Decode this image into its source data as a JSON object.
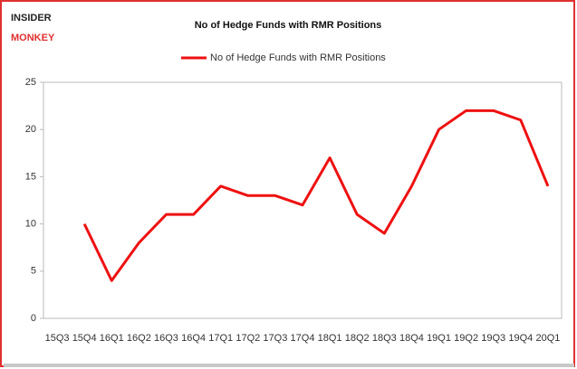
{
  "logo": {
    "line1": "INSIDER",
    "line2": "MONKEY"
  },
  "chart_data": {
    "type": "line",
    "title": "No of Hedge Funds with RMR Positions",
    "categories": [
      "15Q3",
      "15Q4",
      "16Q1",
      "16Q2",
      "16Q3",
      "16Q4",
      "17Q1",
      "17Q2",
      "17Q3",
      "17Q4",
      "18Q1",
      "18Q2",
      "18Q3",
      "18Q4",
      "19Q1",
      "19Q2",
      "19Q3",
      "19Q4",
      "20Q1"
    ],
    "series": [
      {
        "name": "No of Hedge Funds with RMR Positions",
        "color": "#ee1111",
        "values": [
          null,
          10,
          4,
          8,
          11,
          11,
          14,
          13,
          13,
          12,
          17,
          11,
          9,
          14,
          20,
          22,
          22,
          21,
          14
        ]
      }
    ],
    "ylim": [
      0,
      25
    ],
    "yticks": [
      0,
      5,
      10,
      15,
      20,
      25
    ],
    "grid": false,
    "legend": "top"
  }
}
